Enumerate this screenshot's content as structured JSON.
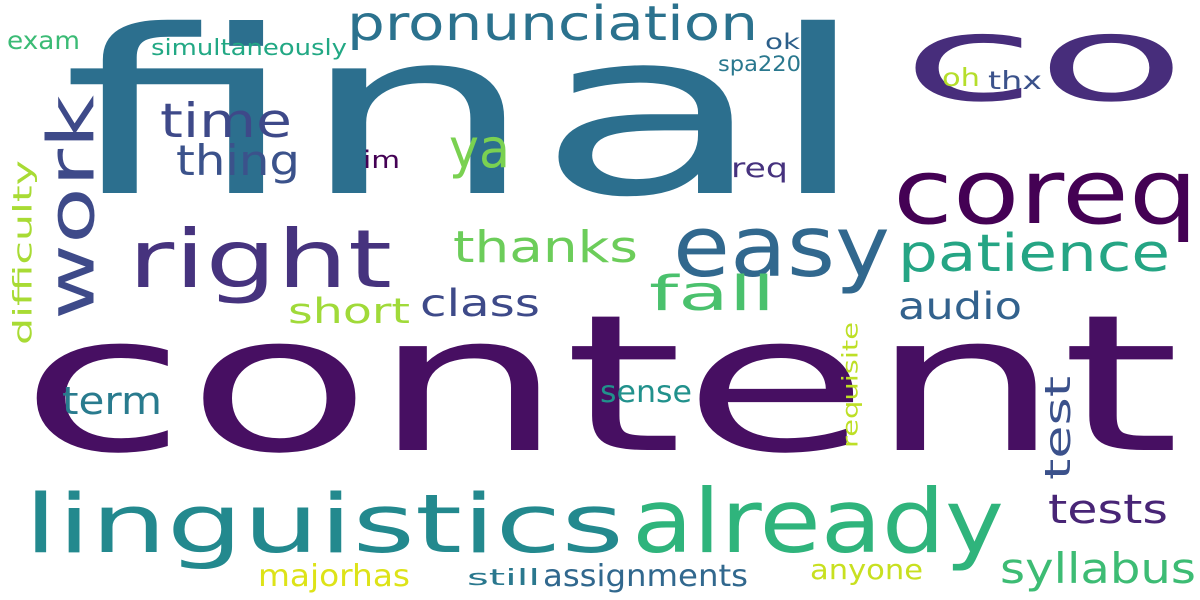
{
  "word_cloud": {
    "background": "#ffffff",
    "words": [
      {
        "text": "final",
        "color": "#2c6f8e",
        "vertical": false
      },
      {
        "text": "co",
        "color": "#472d7b",
        "vertical": false
      },
      {
        "text": "content",
        "color": "#470f62",
        "vertical": false
      },
      {
        "text": "pronunciation",
        "color": "#2b728e",
        "vertical": false
      },
      {
        "text": "exam",
        "color": "#3bbb75",
        "vertical": false
      },
      {
        "text": "simultaneously",
        "color": "#22a884",
        "vertical": false
      },
      {
        "text": "ok",
        "color": "#2c5f8a",
        "vertical": false
      },
      {
        "text": "spa220",
        "color": "#2a788e",
        "vertical": false
      },
      {
        "text": "oh",
        "color": "#b5de2b",
        "vertical": false
      },
      {
        "text": "thx",
        "color": "#3b528b",
        "vertical": false
      },
      {
        "text": "time",
        "color": "#3e4989",
        "vertical": false
      },
      {
        "text": "thing",
        "color": "#3b528b",
        "vertical": false
      },
      {
        "text": "ya",
        "color": "#7ad151",
        "vertical": false
      },
      {
        "text": "im",
        "color": "#440154",
        "vertical": false
      },
      {
        "text": "req",
        "color": "#46327e",
        "vertical": false
      },
      {
        "text": "coreq",
        "color": "#440154",
        "vertical": false
      },
      {
        "text": "work",
        "color": "#3e4a89",
        "vertical": true
      },
      {
        "text": "right",
        "color": "#46337e",
        "vertical": false
      },
      {
        "text": "easy",
        "color": "#31688e",
        "vertical": false
      },
      {
        "text": "thanks",
        "color": "#6ccd5a",
        "vertical": false
      },
      {
        "text": "patience",
        "color": "#25a584",
        "vertical": false
      },
      {
        "text": "fall",
        "color": "#4ac16d",
        "vertical": false
      },
      {
        "text": "short",
        "color": "#a0da39",
        "vertical": false
      },
      {
        "text": "class",
        "color": "#3e4a89",
        "vertical": false
      },
      {
        "text": "audio",
        "color": "#33628d",
        "vertical": false
      },
      {
        "text": "difficulty",
        "color": "#a8db34",
        "vertical": true
      },
      {
        "text": "requisite",
        "color": "#bddf26",
        "vertical": true
      },
      {
        "text": "term",
        "color": "#297b8e",
        "vertical": false
      },
      {
        "text": "sense",
        "color": "#21918c",
        "vertical": false
      },
      {
        "text": "test",
        "color": "#3b518b",
        "vertical": true
      },
      {
        "text": "linguistics",
        "color": "#23898e",
        "vertical": false
      },
      {
        "text": "already",
        "color": "#2fb47c",
        "vertical": false
      },
      {
        "text": "tests",
        "color": "#482576",
        "vertical": false
      },
      {
        "text": "syllabus",
        "color": "#3dbc74",
        "vertical": false
      },
      {
        "text": "majorhas",
        "color": "#dde318",
        "vertical": false
      },
      {
        "text": "still",
        "color": "#2a788e",
        "vertical": false
      },
      {
        "text": "assignments",
        "color": "#31688e",
        "vertical": false
      },
      {
        "text": "anyone",
        "color": "#c8e020",
        "vertical": false
      }
    ]
  }
}
